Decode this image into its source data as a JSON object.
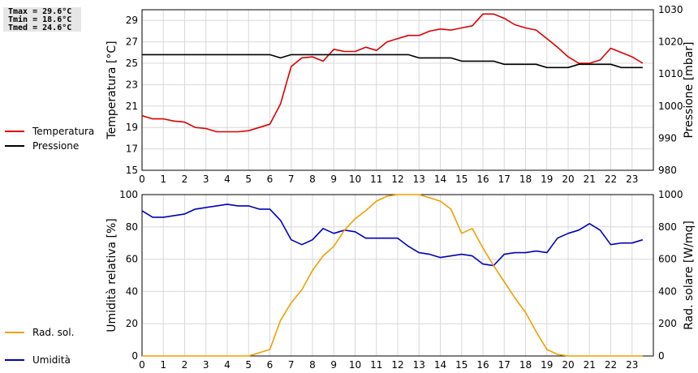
{
  "stats": {
    "tmax": "Tmax = 29.6°C",
    "tmin": "Tmin = 18.6°C",
    "tmed": "Tmed = 24.6°C"
  },
  "colors": {
    "temperature": "#dd0000",
    "pressure": "#000000",
    "humidity": "#0000bb",
    "radiation": "#f0a000",
    "grid": "#d8d8d8"
  },
  "legend": {
    "temperature": "Temperatura",
    "pressure": "Pressione",
    "humidity": "Umidità",
    "radiation": "Rad. sol."
  },
  "chart_data": [
    {
      "type": "line",
      "xlabel": "",
      "xlim": [
        0,
        24
      ],
      "x_ticks": [
        "0",
        "1",
        "2",
        "3",
        "4",
        "5",
        "6",
        "7",
        "8",
        "9",
        "10",
        "11",
        "12",
        "13",
        "14",
        "15",
        "16",
        "17",
        "18",
        "19",
        "20",
        "21",
        "22",
        "23"
      ],
      "grid": true,
      "left_axis": {
        "label": "Temperatura [°C]",
        "ylim": [
          15,
          30
        ],
        "ticks": [
          "15",
          "17",
          "19",
          "21",
          "23",
          "25",
          "27",
          "29"
        ]
      },
      "right_axis": {
        "label": "Pressione [mbar]",
        "ylim": [
          980,
          1030
        ],
        "ticks": [
          "980",
          "990",
          "1000",
          "1010",
          "1020",
          "1030"
        ]
      },
      "x": [
        0,
        0.5,
        1,
        1.5,
        2,
        2.5,
        3,
        3.5,
        4,
        4.5,
        5,
        5.5,
        6,
        6.5,
        7,
        7.5,
        8,
        8.5,
        9,
        9.5,
        10,
        10.5,
        11,
        11.5,
        12,
        12.5,
        13,
        13.5,
        14,
        14.5,
        15,
        15.5,
        16,
        16.5,
        17,
        17.5,
        18,
        18.5,
        19,
        19.5,
        20,
        20.5,
        21,
        21.5,
        22,
        22.5,
        23,
        23.5
      ],
      "series": [
        {
          "name": "Temperatura",
          "axis": "left",
          "values": [
            20.1,
            19.8,
            19.8,
            19.6,
            19.5,
            19.0,
            18.9,
            18.6,
            18.6,
            18.6,
            18.7,
            19.0,
            19.3,
            21.2,
            24.7,
            25.5,
            25.6,
            25.2,
            26.3,
            26.1,
            26.1,
            26.5,
            26.2,
            27.0,
            27.3,
            27.6,
            27.6,
            28.0,
            28.2,
            28.1,
            28.3,
            28.5,
            29.6,
            29.6,
            29.2,
            28.6,
            28.3,
            28.1,
            27.3,
            26.5,
            25.6,
            25.0,
            25.0,
            25.3,
            26.4,
            26.0,
            25.6,
            25.0
          ]
        },
        {
          "name": "Pressione",
          "axis": "right",
          "values": [
            1016,
            1016,
            1016,
            1016,
            1016,
            1016,
            1016,
            1016,
            1016,
            1016,
            1016,
            1016,
            1016,
            1015,
            1016,
            1016,
            1016,
            1016,
            1016,
            1016,
            1016,
            1016,
            1016,
            1016,
            1016,
            1016,
            1015,
            1015,
            1015,
            1015,
            1014,
            1014,
            1014,
            1014,
            1013,
            1013,
            1013,
            1013,
            1012,
            1012,
            1012,
            1013,
            1013,
            1013,
            1013,
            1012,
            1012,
            1012
          ]
        }
      ]
    },
    {
      "type": "line",
      "xlabel": "",
      "xlim": [
        0,
        24
      ],
      "x_ticks": [
        "0",
        "1",
        "2",
        "3",
        "4",
        "5",
        "6",
        "7",
        "8",
        "9",
        "10",
        "11",
        "12",
        "13",
        "14",
        "15",
        "16",
        "17",
        "18",
        "19",
        "20",
        "21",
        "22",
        "23"
      ],
      "grid": true,
      "left_axis": {
        "label": "Umidità relativa [%]",
        "ylim": [
          0,
          100
        ],
        "ticks": [
          "0",
          "20",
          "40",
          "60",
          "80",
          "100"
        ]
      },
      "right_axis": {
        "label": "Rad. solare [W/mq]",
        "ylim": [
          0,
          1000
        ],
        "ticks": [
          "0",
          "200",
          "400",
          "600",
          "800",
          "1000"
        ]
      },
      "x": [
        0,
        0.5,
        1,
        1.5,
        2,
        2.5,
        3,
        3.5,
        4,
        4.5,
        5,
        5.5,
        6,
        6.5,
        7,
        7.5,
        8,
        8.5,
        9,
        9.5,
        10,
        10.5,
        11,
        11.5,
        12,
        12.5,
        13,
        13.5,
        14,
        14.5,
        15,
        15.5,
        16,
        16.5,
        17,
        17.5,
        18,
        18.5,
        19,
        19.5,
        20,
        20.5,
        21,
        21.5,
        22,
        22.5,
        23,
        23.5
      ],
      "series": [
        {
          "name": "Umidità",
          "axis": "left",
          "values": [
            90,
            86,
            86,
            87,
            88,
            91,
            92,
            93,
            94,
            93,
            93,
            91,
            91,
            84,
            72,
            69,
            72,
            79,
            76,
            78,
            77,
            73,
            73,
            73,
            73,
            68,
            64,
            63,
            61,
            62,
            63,
            62,
            57,
            56,
            63,
            64,
            64,
            65,
            64,
            73,
            76,
            78,
            82,
            78,
            69,
            70,
            70,
            72
          ]
        },
        {
          "name": "Rad. sol.",
          "axis": "right",
          "values": [
            0,
            0,
            0,
            0,
            0,
            0,
            0,
            0,
            0,
            0,
            0,
            20,
            40,
            220,
            330,
            410,
            530,
            620,
            680,
            780,
            850,
            900,
            960,
            990,
            1000,
            1000,
            1000,
            980,
            960,
            910,
            760,
            790,
            670,
            560,
            460,
            360,
            270,
            150,
            40,
            10,
            0,
            0,
            0,
            0,
            0,
            0,
            0,
            0
          ]
        }
      ]
    }
  ]
}
